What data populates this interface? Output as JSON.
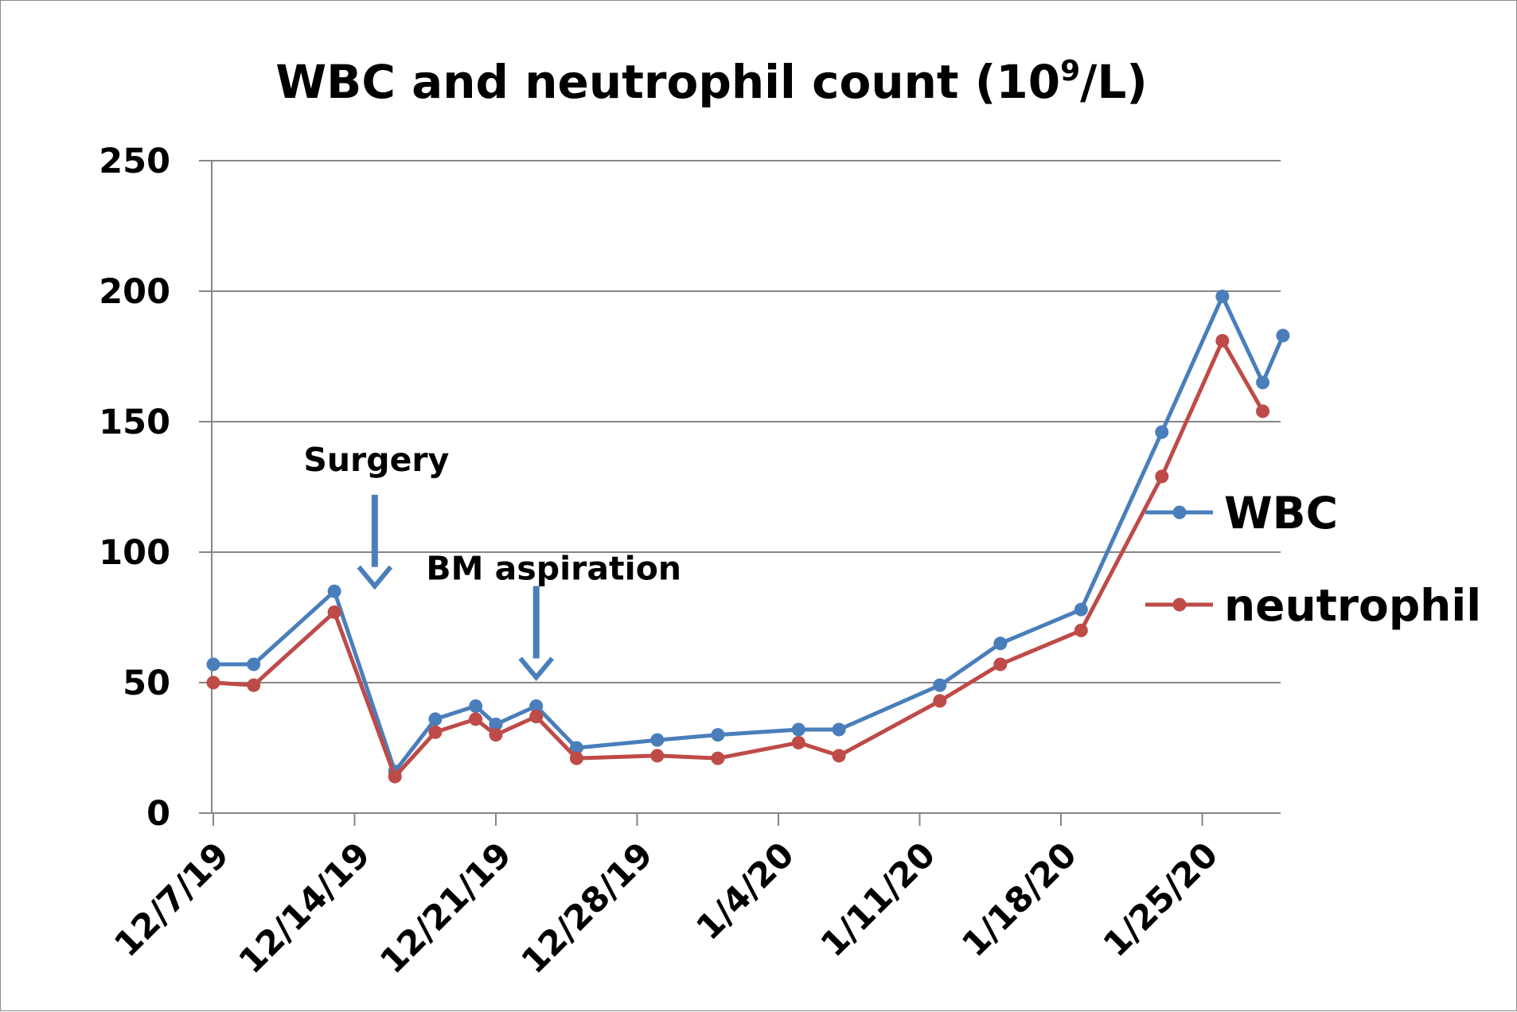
{
  "chart_data": {
    "type": "line",
    "title_main": "WBC and neutrophil count (10",
    "title_sup": "9",
    "title_end": "/L)",
    "xlabel": "",
    "ylabel": "",
    "ylim": [
      0,
      250
    ],
    "yticks": [
      0,
      50,
      100,
      150,
      200,
      250
    ],
    "xlim": [
      "2019-12-07",
      "2020-01-29"
    ],
    "xticks": [
      {
        "date": "2019-12-07",
        "label": "12/7/19"
      },
      {
        "date": "2019-12-14",
        "label": "12/14/19"
      },
      {
        "date": "2019-12-21",
        "label": "12/21/19"
      },
      {
        "date": "2019-12-28",
        "label": "12/28/19"
      },
      {
        "date": "2020-01-04",
        "label": "1/4/20"
      },
      {
        "date": "2020-01-11",
        "label": "1/11/20"
      },
      {
        "date": "2020-01-18",
        "label": "1/18/20"
      },
      {
        "date": "2020-01-25",
        "label": "1/25/20"
      }
    ],
    "grid": true,
    "legend_position": "right",
    "series": [
      {
        "name": "WBC",
        "color": "#4a7ebb",
        "points": [
          [
            "2019-12-07",
            57
          ],
          [
            "2019-12-09",
            57
          ],
          [
            "2019-12-13",
            85
          ],
          [
            "2019-12-16",
            16
          ],
          [
            "2019-12-18",
            36
          ],
          [
            "2019-12-20",
            41
          ],
          [
            "2019-12-21",
            34
          ],
          [
            "2019-12-23",
            41
          ],
          [
            "2019-12-25",
            25
          ],
          [
            "2019-12-29",
            28
          ],
          [
            "2020-01-01",
            30
          ],
          [
            "2020-01-05",
            32
          ],
          [
            "2020-01-07",
            32
          ],
          [
            "2020-01-12",
            49
          ],
          [
            "2020-01-15",
            65
          ],
          [
            "2020-01-19",
            78
          ],
          [
            "2020-01-23",
            146
          ],
          [
            "2020-01-26",
            198
          ],
          [
            "2020-01-28",
            165
          ],
          [
            "2020-01-29",
            183
          ]
        ]
      },
      {
        "name": "neutrophil",
        "color": "#be4b48",
        "points": [
          [
            "2019-12-07",
            50
          ],
          [
            "2019-12-09",
            49
          ],
          [
            "2019-12-13",
            77
          ],
          [
            "2019-12-16",
            14
          ],
          [
            "2019-12-18",
            31
          ],
          [
            "2019-12-20",
            36
          ],
          [
            "2019-12-21",
            30
          ],
          [
            "2019-12-23",
            37
          ],
          [
            "2019-12-25",
            21
          ],
          [
            "2019-12-29",
            22
          ],
          [
            "2020-01-01",
            21
          ],
          [
            "2020-01-05",
            27
          ],
          [
            "2020-01-07",
            22
          ],
          [
            "2020-01-12",
            43
          ],
          [
            "2020-01-15",
            57
          ],
          [
            "2020-01-19",
            70
          ],
          [
            "2020-01-23",
            129
          ],
          [
            "2020-01-26",
            181
          ],
          [
            "2020-01-28",
            154
          ]
        ]
      }
    ],
    "annotations": [
      {
        "text": "Surgery",
        "arrow_date": "2019-12-15",
        "arrow_from": 122,
        "arrow_to": 87
      },
      {
        "text": "BM aspiration",
        "arrow_date": "2019-12-23",
        "arrow_from": 87,
        "arrow_to": 52
      }
    ],
    "arrow_color": "#4a7ebb",
    "axis_color": "#868686",
    "grid_color": "#868686"
  }
}
